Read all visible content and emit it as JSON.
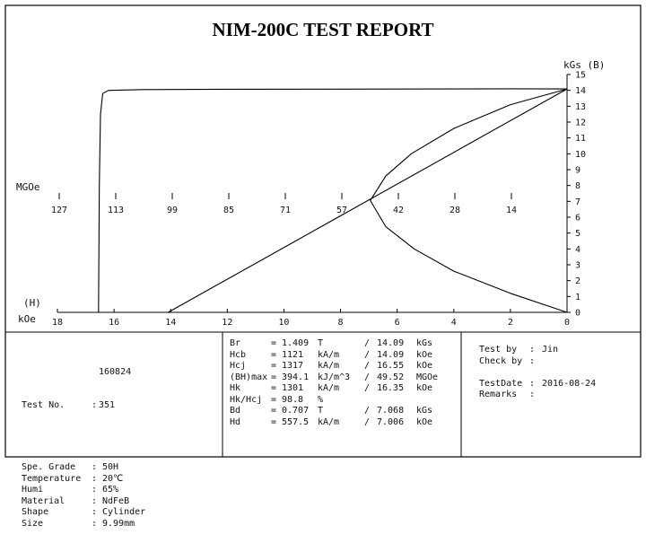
{
  "report_title": "NIM-200C TEST REPORT",
  "chart_data": {
    "type": "line",
    "title": "NIM-200C TEST REPORT",
    "x_axis": {
      "unit_label": "kOe",
      "ticks": [
        18,
        16,
        14,
        12,
        10,
        8,
        6,
        4,
        2,
        0
      ],
      "range": [
        18,
        0
      ]
    },
    "y_axis": {
      "unit_label": "kGs (B)",
      "ticks": [
        0,
        1,
        2,
        3,
        4,
        5,
        6,
        7,
        8,
        9,
        10,
        11,
        12,
        13,
        14,
        15
      ],
      "range": [
        0,
        15
      ],
      "side": "right"
    },
    "energy_axis": {
      "unit_label": "MGOe",
      "ticks": [
        "127",
        "113",
        "99",
        "85",
        "71",
        "57",
        "42",
        "28",
        "14"
      ]
    },
    "corner_label": "(H)",
    "series": [
      {
        "kind": "intrinsic-J-curve",
        "points": [
          [
            0,
            14.09
          ],
          [
            2,
            14.1
          ],
          [
            4,
            14.09
          ],
          [
            8,
            14.08
          ],
          [
            12,
            14.07
          ],
          [
            15,
            14.05
          ],
          [
            16.2,
            14.0
          ],
          [
            16.4,
            13.8
          ],
          [
            16.48,
            12.5
          ],
          [
            16.52,
            8
          ],
          [
            16.55,
            0
          ]
        ]
      },
      {
        "kind": "normal-B-curve",
        "points": [
          [
            0,
            14.09
          ],
          [
            14.09,
            0
          ]
        ]
      },
      {
        "kind": "BH-product-curve",
        "points": [
          [
            0,
            14.09
          ],
          [
            2,
            13.1
          ],
          [
            4,
            11.6
          ],
          [
            5.5,
            10.0
          ],
          [
            6.4,
            8.6
          ],
          [
            6.95,
            7.05
          ],
          [
            6.4,
            5.4
          ],
          [
            5.4,
            4.0
          ],
          [
            4,
            2.6
          ],
          [
            2,
            1.2
          ],
          [
            0,
            0
          ]
        ]
      }
    ]
  },
  "info": {
    "left": {
      "test_no_label": "Test No.",
      "test_no_sep": ":",
      "test_no_line1": "160824",
      "test_no_line2": "351",
      "rows": [
        {
          "label": "Spe. Grade",
          "sep": ":",
          "value": "50H"
        },
        {
          "label": "Temperature",
          "sep": ":",
          "value": "20℃"
        },
        {
          "label": "Humi",
          "sep": ":",
          "value": "65%"
        },
        {
          "label": "Material",
          "sep": ":",
          "value": "NdFeB"
        },
        {
          "label": "Shape",
          "sep": ":",
          "value": "Cylinder"
        },
        {
          "label": "Size",
          "sep": ":",
          "value": "9.99mm"
        }
      ]
    },
    "middle": [
      {
        "name": "Br",
        "eq": "=",
        "v1": "1.409",
        "u1": "T",
        "sl": "/",
        "v2": "14.09",
        "u2": "kGs"
      },
      {
        "name": "Hcb",
        "eq": "=",
        "v1": "1121",
        "u1": "kA/m",
        "sl": "/",
        "v2": "14.09",
        "u2": "kOe"
      },
      {
        "name": "Hcj",
        "eq": "=",
        "v1": "1317",
        "u1": "kA/m",
        "sl": "/",
        "v2": "16.55",
        "u2": "kOe"
      },
      {
        "name": "(BH)max",
        "eq": "=",
        "v1": "394.1",
        "u1": "kJ/m^3",
        "sl": "/",
        "v2": "49.52",
        "u2": "MGOe"
      },
      {
        "name": "Hk",
        "eq": "=",
        "v1": "1301",
        "u1": "kA/m",
        "sl": "/",
        "v2": "16.35",
        "u2": "kOe"
      },
      {
        "name": "Hk/Hcj",
        "eq": "=",
        "v1": "98.8",
        "u1": "%",
        "sl": "",
        "v2": "",
        "u2": ""
      },
      {
        "name": "Bd",
        "eq": "=",
        "v1": "0.707",
        "u1": "T",
        "sl": "/",
        "v2": "7.068",
        "u2": "kGs"
      },
      {
        "name": "Hd",
        "eq": "=",
        "v1": "557.5",
        "u1": "kA/m",
        "sl": "/",
        "v2": "7.006",
        "u2": "kOe"
      }
    ],
    "right": [
      {
        "label": "Test by",
        "sep": ":",
        "value": "Jin"
      },
      {
        "label": "Check by",
        "sep": ":",
        "value": ""
      },
      {
        "label": "",
        "sep": "",
        "value": ""
      },
      {
        "label": "TestDate",
        "sep": ":",
        "value": "2016-08-24"
      },
      {
        "label": "Remarks",
        "sep": ":",
        "value": ""
      }
    ]
  }
}
